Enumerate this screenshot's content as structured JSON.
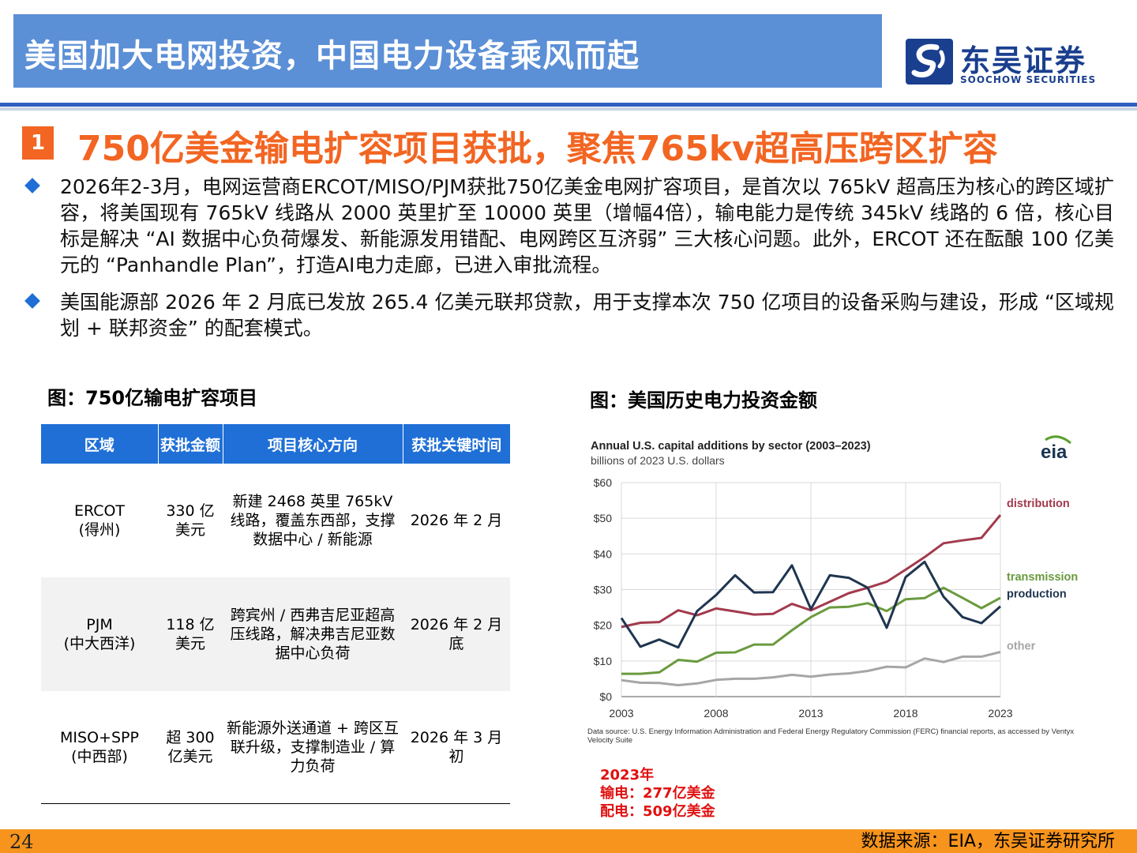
{
  "header": {
    "title": "美国加大电网投资，中国电力设备乘风而起",
    "logo_cn": "东吴证券",
    "logo_en": "SOOCHOW SECURITIES"
  },
  "section": {
    "number": "1",
    "title": "750亿美金输电扩容项目获批，聚焦765kv超高压跨区扩容"
  },
  "bullets": [
    "2026年2-3月，电网运营商ERCOT/MISO/PJM获批750亿美金电网扩容项目，是首次以 765kV 超高压为核心的跨区域扩容，将美国现有 765kV 线路从 2000 英里扩至 10000 英里（增幅4倍），输电能力是传统 345kV 线路的 6 倍，核心目标是解决 “AI 数据中心负荷爆发、新能源发用错配、电网跨区互济弱” 三大核心问题。此外，ERCOT 还在酝酿 100 亿美元的 “Panhandle Plan”，打造AI电力走廊，已进入审批流程。",
    "美国能源部 2026 年 2 月底已发放 265.4 亿美元联邦贷款，用于支撑本次 750 亿项目的设备采购与建设，形成 “区域规划 + 联邦资金” 的配套模式。"
  ],
  "table": {
    "title": "图：750亿输电扩容项目",
    "headers": [
      "区域",
      "获批金额",
      "项目核心方向",
      "获批关键时间"
    ],
    "rows": [
      {
        "region": "ERCOT",
        "region_sub": "(得州)",
        "amount": "330 亿美元",
        "direction": "新建 2468 英里 765kV 线路，覆盖东西部，支撑数据中心 / 新能源",
        "time": "2026 年 2 月"
      },
      {
        "region": "PJM",
        "region_sub": "(中大西洋)",
        "amount": "118 亿美元",
        "direction": "跨宾州 / 西弗吉尼亚超高压线路，解决弗吉尼亚数据中心负荷",
        "time": "2026 年 2 月底"
      },
      {
        "region": "MISO+SPP",
        "region_sub": "(中西部)",
        "amount": "超 300 亿美元",
        "direction": "新能源外送通道 + 跨区互联升级，支撑制造业 / 算力负荷",
        "time": "2026 年 3 月初"
      }
    ]
  },
  "chart_section": {
    "title": "图：美国历史电力投资金额"
  },
  "chart_data": {
    "type": "line",
    "title": "Annual U.S. capital additions by sector (2003–2023)",
    "subtitle": "billions of 2023 U.S. dollars",
    "badge": "eia",
    "x": [
      2003,
      2004,
      2005,
      2006,
      2007,
      2008,
      2009,
      2010,
      2011,
      2012,
      2013,
      2014,
      2015,
      2016,
      2017,
      2018,
      2019,
      2020,
      2021,
      2022,
      2023
    ],
    "xticks": [
      "2003",
      "2008",
      "2013",
      "2018",
      "2023"
    ],
    "yticks": [
      "$0",
      "$10",
      "$20",
      "$30",
      "$40",
      "$50",
      "$60"
    ],
    "ylim": [
      0,
      60
    ],
    "grid": true,
    "series": [
      {
        "name": "distribution",
        "color": "#a23a4e",
        "values": [
          19.5,
          20.7,
          20.9,
          24.2,
          22.8,
          24.7,
          23.9,
          23,
          23.2,
          26,
          24.2,
          26.6,
          29,
          30.5,
          32.2,
          35.6,
          39.1,
          43,
          43.8,
          44.5,
          50.9
        ]
      },
      {
        "name": "transmission",
        "color": "#6a9a3e",
        "values": [
          6.4,
          6.4,
          6.8,
          10.3,
          9.8,
          12.3,
          12.4,
          14.6,
          14.6,
          18.6,
          22.3,
          25,
          25.2,
          26.2,
          24,
          27.3,
          27.6,
          30.5,
          27.7,
          24.8,
          27.7
        ]
      },
      {
        "name": "production",
        "color": "#1f3550",
        "values": [
          22,
          14,
          16,
          13.8,
          24,
          28.5,
          34,
          29.2,
          29.3,
          36.8,
          24.5,
          34,
          33.3,
          30.5,
          19.3,
          33.5,
          37.8,
          28,
          22.3,
          20.6,
          25.3
        ]
      },
      {
        "name": "other",
        "color": "#a6a6a6",
        "values": [
          4.6,
          3.9,
          3.8,
          3.2,
          3.7,
          4.7,
          5,
          5,
          5.4,
          6.1,
          5.6,
          6.2,
          6.5,
          7.2,
          8.4,
          8.2,
          10.7,
          9.7,
          11.2,
          11.2,
          12.5
        ]
      }
    ],
    "data_source": "Data source: U.S. Energy Information Administration and Federal Energy Regulatory Commission (FERC) financial reports, as accessed by Ventyx Velocity Suite"
  },
  "notes": [
    "2023年",
    "输电：277亿美金",
    "配电：509亿美金"
  ],
  "footer": {
    "page": "24",
    "source": "数据来源：EIA，东吴证券研究所"
  },
  "colors": {
    "title_bar": "#5b8fd6",
    "accent_orange": "#f26522",
    "table_header": "#1f6fd6",
    "footer": "#f7941d",
    "note_red": "#e01010"
  }
}
